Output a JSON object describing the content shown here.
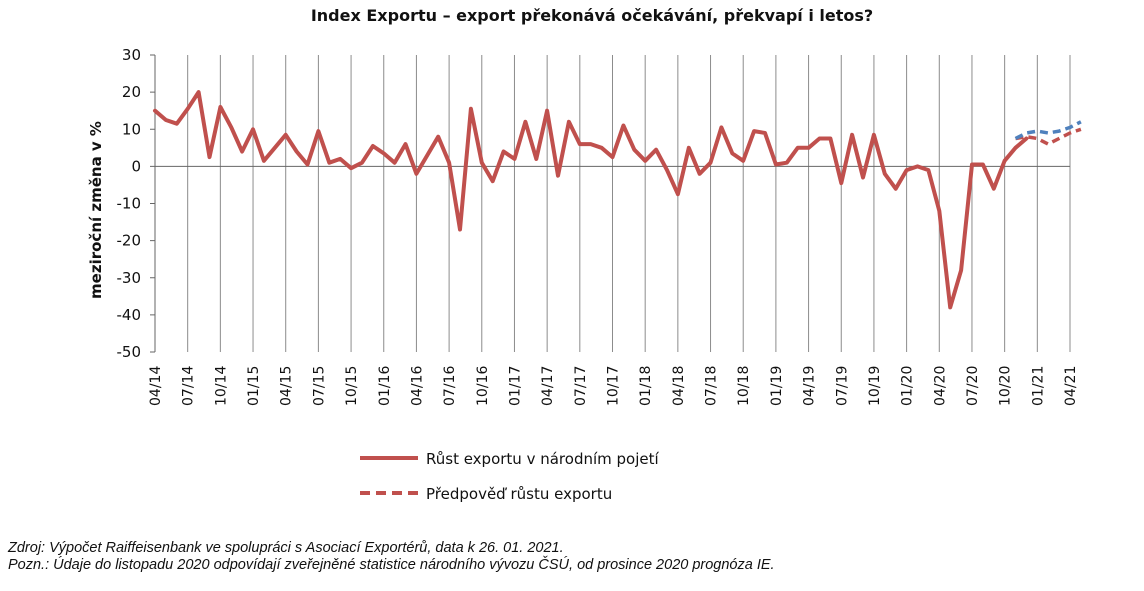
{
  "chart_data": {
    "type": "line",
    "title": "Index Exportu – export překonává očekávání, překvapí i letos?",
    "ylabel": "meziroční změna v %",
    "xlabel": "",
    "ylim": [
      -50,
      30
    ],
    "yticks": [
      30,
      20,
      10,
      0,
      -10,
      -20,
      -30,
      -40,
      -50
    ],
    "grid": "vertical",
    "legend_position": "bottom",
    "x_tick_labels": [
      "04/14",
      "07/14",
      "10/14",
      "01/15",
      "04/15",
      "07/15",
      "10/15",
      "01/16",
      "04/16",
      "07/16",
      "10/16",
      "01/17",
      "04/17",
      "07/17",
      "10/17",
      "01/18",
      "04/18",
      "07/18",
      "10/18",
      "01/19",
      "04/19",
      "07/19",
      "10/19",
      "01/20",
      "04/20",
      "07/20",
      "10/20",
      "01/21",
      "04/21"
    ],
    "x_start": "2014-04",
    "series": [
      {
        "name": "Růst exportu v národním pojetí",
        "color": "#c0504d",
        "style": "solid",
        "values": [
          15,
          12.5,
          11.5,
          15.5,
          20,
          2.5,
          16,
          10.5,
          4,
          10,
          1.5,
          5,
          8.5,
          4,
          0.5,
          9.5,
          1,
          2,
          -0.5,
          1,
          5.5,
          3.5,
          1,
          6,
          -2,
          3,
          8,
          1,
          -17,
          15.5,
          1,
          -4,
          4,
          2,
          12,
          2,
          15,
          -2.5,
          12,
          6,
          6,
          5,
          2.5,
          11,
          4.5,
          1.5,
          4.5,
          -1,
          -7.5,
          5,
          -2,
          1,
          10.5,
          3.5,
          1.5,
          9.5,
          9,
          0.5,
          1,
          5,
          5,
          7.5,
          7.5,
          -4.5,
          8.5,
          -3,
          8.5,
          -2,
          -6,
          -1,
          0,
          -1,
          -12,
          -38,
          -28,
          0.5,
          0.5,
          -6,
          1.5,
          5,
          7.5
        ]
      },
      {
        "name": "Předpověď růstu exportu",
        "color": "#c0504d",
        "style": "dashed",
        "start": "2020-11",
        "values": [
          7.5,
          8,
          7.5,
          6,
          7.5,
          9,
          10
        ]
      },
      {
        "name": "",
        "color": "#4f81bd",
        "style": "dashed",
        "start": "2020-11",
        "values": [
          7.5,
          9,
          9.5,
          9,
          9.5,
          10.5,
          12
        ]
      }
    ]
  },
  "source_lines": [
    "Zdroj: Výpočet Raiffeisenbank ve spolupráci s Asociací Exportérů, data k 26. 01. 2021.",
    "Pozn.: Údaje do listopadu 2020 odpovídají zveřejněné statistice národního vývozu ČSÚ, od prosince 2020 prognóza IE."
  ]
}
